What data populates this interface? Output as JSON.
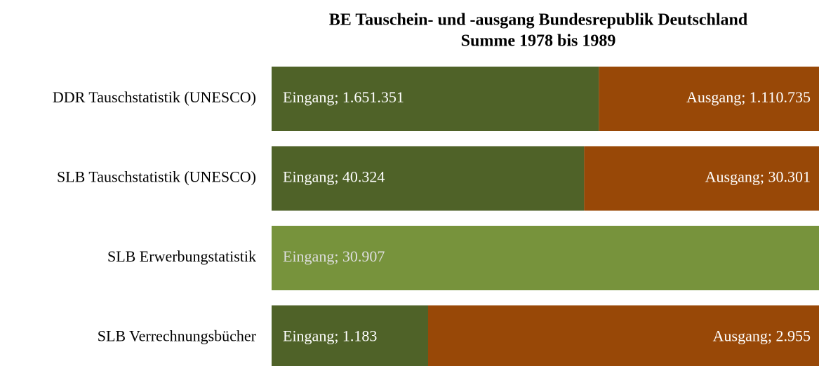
{
  "chart_data": {
    "type": "stacked-percent-bar",
    "title": "BE Tauschein- und -ausgang Bundesrepublik Deutschland",
    "subtitle": "Summe 1978 bis 1989",
    "categories": [
      "DDR Tauschstatistik (UNESCO)",
      "SLB Tauschstatistik (UNESCO)",
      "SLB Erwerbungstatistik",
      "SLB Verrechnungsbücher"
    ],
    "series": [
      {
        "name": "Eingang",
        "color": "#4f6228",
        "colors": [
          "#4f6228",
          "#4f6228",
          "#77933c",
          "#4f6228"
        ],
        "values": [
          1651351,
          40324,
          30907,
          1183
        ],
        "value_labels": [
          "Eingang; 1.651.351",
          "Eingang; 40.324",
          "Eingang; 30.907",
          "Eingang; 1.183"
        ]
      },
      {
        "name": "Ausgang",
        "color": "#984807",
        "values": [
          1110735,
          30301,
          null,
          2955
        ],
        "value_labels": [
          "Ausgang; 1.110.735",
          "Ausgang; 30.301",
          null,
          "Ausgang; 2.955"
        ]
      }
    ]
  }
}
